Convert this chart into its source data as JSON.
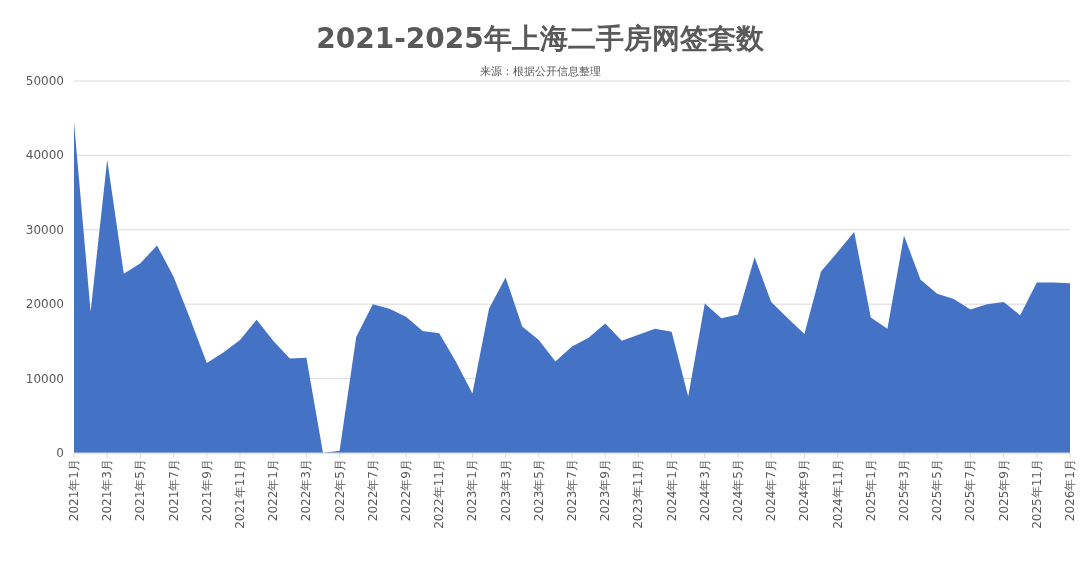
{
  "chart_data": {
    "type": "area",
    "title": "2021-2025年上海二手房网签套数",
    "subtitle": "来源：根据公开信息整理",
    "categories": [
      "2021年1月",
      null,
      "2021年3月",
      null,
      "2021年5月",
      null,
      "2021年7月",
      null,
      "2021年9月",
      null,
      "2021年11月",
      null,
      "2022年1月",
      null,
      "2022年3月",
      null,
      "2022年5月",
      null,
      "2022年7月",
      null,
      "2022年9月",
      null,
      "2022年11月",
      null,
      "2023年1月",
      null,
      "2023年3月",
      null,
      "2023年5月",
      null,
      "2023年7月",
      null,
      "2023年9月",
      null,
      "2023年11月",
      null,
      "2024年1月",
      null,
      "2024年3月",
      null,
      "2024年5月",
      null,
      "2024年7月",
      null,
      "2024年9月",
      null,
      "2024年11月",
      null,
      "2025年1月",
      null,
      "2025年3月",
      null,
      "2025年5月",
      null,
      "2025年7月",
      null,
      "2025年9月",
      null,
      "2025年11月",
      null,
      "2026年1月"
    ],
    "series": [
      {
        "color": "#4472c4",
        "values": [
          44500,
          19000,
          39400,
          24100,
          25500,
          27900,
          23700,
          18000,
          12100,
          13500,
          15200,
          17900,
          15100,
          12700,
          12800,
          0,
          300,
          15600,
          20000,
          19400,
          18300,
          16400,
          16100,
          12300,
          8000,
          19400,
          23600,
          17000,
          15200,
          12300,
          14300,
          15500,
          17400,
          15100,
          15900,
          16700,
          16300,
          7600,
          20100,
          18100,
          18600,
          26300,
          20300,
          18100,
          16000,
          24400,
          27000,
          29700,
          18200,
          16700,
          29200,
          23300,
          21400,
          20700,
          19300,
          20000,
          20300,
          18500,
          22900,
          22900,
          22800
        ]
      }
    ],
    "ylim": [
      0,
      50000
    ],
    "yticks": [
      0,
      10000,
      20000,
      30000,
      40000,
      50000
    ],
    "grid": "y"
  }
}
